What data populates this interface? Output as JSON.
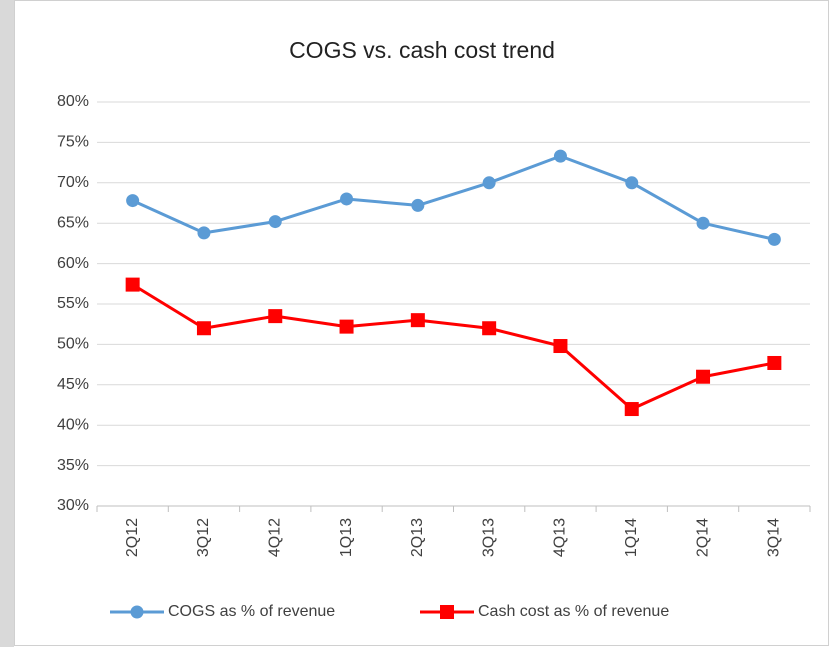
{
  "chart_data": {
    "type": "line",
    "title": "COGS vs. cash cost trend",
    "categories": [
      "2Q12",
      "3Q12",
      "4Q12",
      "1Q13",
      "2Q13",
      "3Q13",
      "4Q13",
      "1Q14",
      "2Q14",
      "3Q14"
    ],
    "series": [
      {
        "name": "COGS as % of revenue",
        "color": "#5b9bd5",
        "marker": "circle",
        "values": [
          67.8,
          63.8,
          65.2,
          68.0,
          67.2,
          70.0,
          73.3,
          70.0,
          65.0,
          63.0
        ]
      },
      {
        "name": "Cash cost as % of revenue",
        "color": "#ff0000",
        "marker": "square",
        "values": [
          57.4,
          52.0,
          53.5,
          52.2,
          53.0,
          52.0,
          49.8,
          42.0,
          46.0,
          47.7
        ]
      }
    ],
    "ylim": [
      30,
      80
    ],
    "yticks": [
      {
        "value": 30,
        "label": "30%"
      },
      {
        "value": 35,
        "label": "35%"
      },
      {
        "value": 40,
        "label": "40%"
      },
      {
        "value": 45,
        "label": "45%"
      },
      {
        "value": 50,
        "label": "50%"
      },
      {
        "value": 55,
        "label": "55%"
      },
      {
        "value": 60,
        "label": "60%"
      },
      {
        "value": 65,
        "label": "65%"
      },
      {
        "value": 70,
        "label": "70%"
      },
      {
        "value": 75,
        "label": "75%"
      },
      {
        "value": 80,
        "label": "80%"
      }
    ],
    "grid": true,
    "legend": "bottom"
  }
}
